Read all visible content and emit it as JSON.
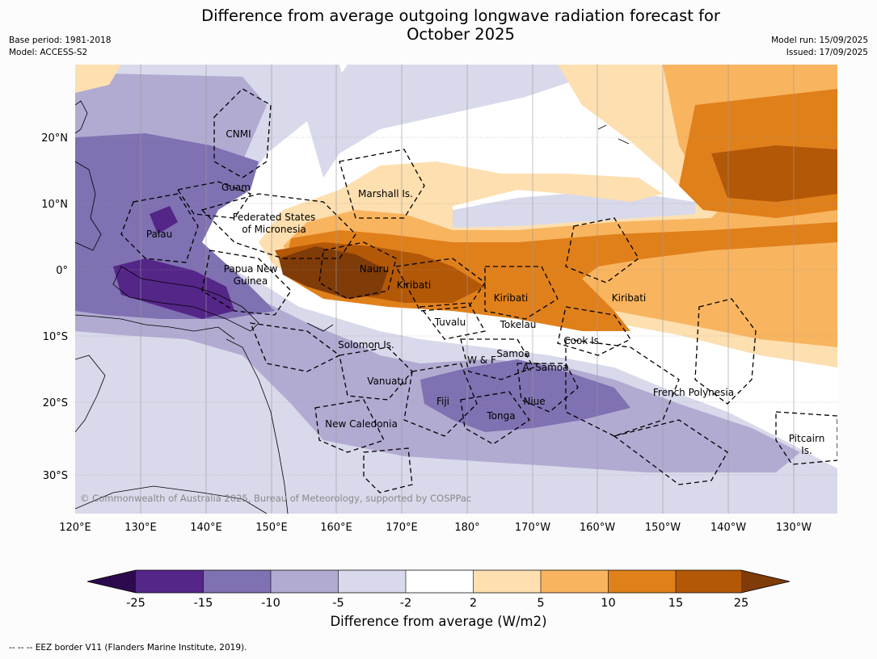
{
  "title": {
    "line1": "Difference from average outgoing longwave radiation forecast for",
    "line2": "October 2025"
  },
  "meta": {
    "base_period": "Base period: 1981-2018",
    "model": "Model: ACCESS-S2",
    "model_run": "Model run: 15/09/2025",
    "issued": "Issued: 17/09/2025"
  },
  "map": {
    "lon_ticks": [
      "120°E",
      "130°E",
      "140°E",
      "150°E",
      "160°E",
      "170°E",
      "180°",
      "170°W",
      "160°W",
      "150°W",
      "140°W",
      "130°W"
    ],
    "lat_ticks": [
      "20°N",
      "10°N",
      "0°",
      "10°S",
      "20°S",
      "30°S"
    ],
    "copyright": "© Commonwealth of Australia 2025, Bureau of Meteorology, supported by COSPPac",
    "labels": [
      "CNMI",
      "Guam",
      "Marshall Is.",
      "Federated States",
      "of Micronesia",
      "Palau",
      "Papua New",
      "Guinea",
      "Nauru",
      "Kiribati",
      "Kiribati",
      "Kiribati",
      "Tuvalu",
      "Tokelau",
      "Cook Is.",
      "Solomon Is.",
      "W & F",
      "Samoa",
      "A. Samoa",
      "Vanuatu",
      "Fiji",
      "Niue",
      "Tonga",
      "New Caledonia",
      "French Polynesia",
      "Pitcairn",
      "Is."
    ]
  },
  "colorbar": {
    "ticks": [
      "-25",
      "-15",
      "-10",
      "-5",
      "-2",
      "2",
      "5",
      "10",
      "15",
      "25"
    ],
    "label": "Difference from average (W/m2)",
    "colors": [
      "#2d0a4e",
      "#542688",
      "#8071b2",
      "#b1abd2",
      "#d8d9ea",
      "#ffffff",
      "#fddfb0",
      "#f8b45f",
      "#e0801b",
      "#b35807",
      "#7f3b08"
    ]
  },
  "footnote": "--  --  -- EEZ border V11 (Flanders Marine Institute, 2019)."
}
